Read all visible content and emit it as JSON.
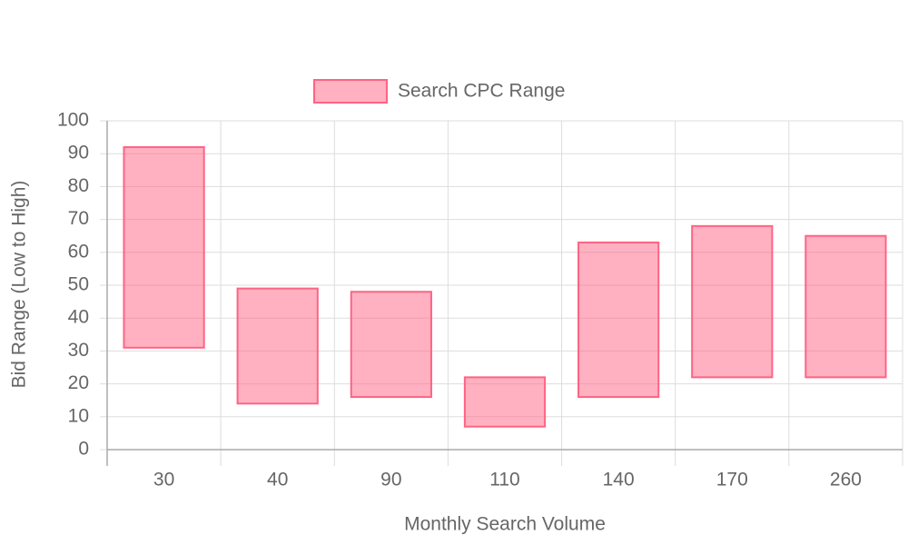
{
  "chart_data": {
    "type": "bar",
    "x_label": "Monthly Search Volume",
    "y_label": "Bid Range (Low to High)",
    "categories": [
      "30",
      "40",
      "90",
      "110",
      "140",
      "170",
      "260"
    ],
    "series": [
      {
        "name": "Search CPC Range",
        "color": "#ff6384",
        "values": [
          [
            31,
            92
          ],
          [
            14,
            49
          ],
          [
            16,
            48
          ],
          [
            7,
            22
          ],
          [
            16,
            63
          ],
          [
            22,
            68
          ],
          [
            22,
            65
          ]
        ]
      }
    ],
    "ylim": [
      0,
      100
    ],
    "yticks": [
      0,
      10,
      20,
      30,
      40,
      50,
      60,
      70,
      80,
      90,
      100
    ],
    "grid": true,
    "legend": "top"
  }
}
